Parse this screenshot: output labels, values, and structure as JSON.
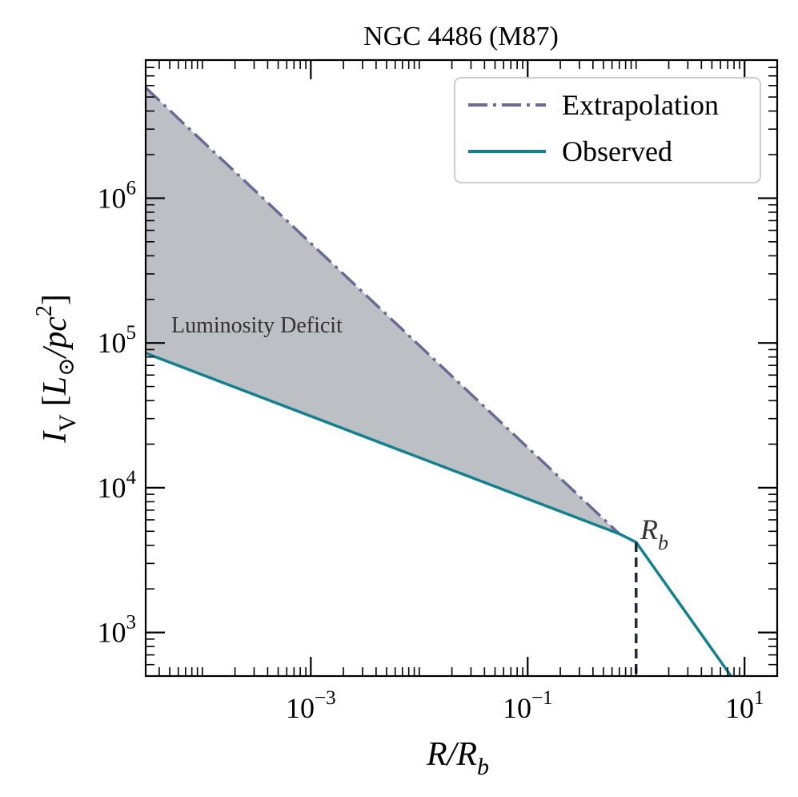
{
  "chart_data": {
    "type": "line",
    "title": "NGC 4486 (M87)",
    "xlabel": {
      "main": "R/R",
      "sub": "b"
    },
    "ylabel": {
      "main": "I",
      "sub": "V",
      "bracket_open": "[",
      "L": "L",
      "sun": "⊙",
      "per": "/pc",
      "sup": "2",
      "bracket_close": "]"
    },
    "x_scale": "log",
    "y_scale": "log",
    "xlim": [
      3e-05,
      20
    ],
    "ylim": [
      500,
      9000000
    ],
    "x_ticks": [
      {
        "value": 0.001,
        "base": "10",
        "exp": "−3"
      },
      {
        "value": 0.1,
        "base": "10",
        "exp": "−1"
      },
      {
        "value": 10,
        "base": "10",
        "exp": "1"
      }
    ],
    "y_ticks": [
      {
        "value": 1000,
        "base": "10",
        "exp": "3"
      },
      {
        "value": 10000,
        "base": "10",
        "exp": "4"
      },
      {
        "value": 100000,
        "base": "10",
        "exp": "5"
      },
      {
        "value": 1000000,
        "base": "10",
        "exp": "6"
      }
    ],
    "series": [
      {
        "name": "Extrapolation",
        "style": "dashdot",
        "color": "#6b6a96",
        "x": [
          3e-05,
          0.7
        ],
        "y": [
          5800000,
          4800
        ]
      },
      {
        "name": "Observed",
        "style": "solid",
        "color": "#11808f",
        "x": [
          3e-05,
          0.7,
          1.0,
          7.5
        ],
        "y": [
          85000,
          4800,
          4200,
          500
        ]
      }
    ],
    "fill": {
      "color": "#bcbfc4",
      "between": [
        "Extrapolation",
        "Observed"
      ]
    },
    "annotations": [
      {
        "text": "Luminosity Deficit",
        "x": 4e-05,
        "y": 125000,
        "color": "#333333"
      }
    ],
    "break_radius": {
      "label_main": "R",
      "label_sub": "b",
      "x": 1.0,
      "y_top": 4200,
      "color": "#222a3a"
    },
    "legend": {
      "placement": "top-right"
    }
  }
}
